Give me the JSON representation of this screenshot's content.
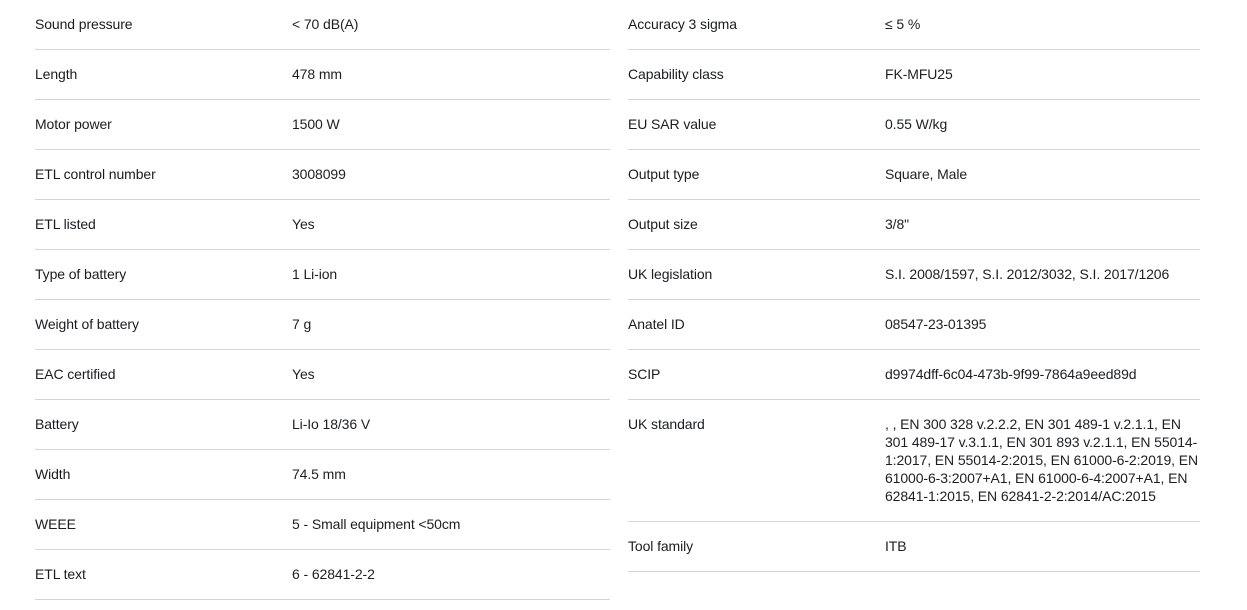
{
  "page": {
    "background_color": "#ffffff",
    "text_color": "#1d1f22",
    "divider_color": "#d5d5d5",
    "description": "Product technical data specification tables, two columns"
  },
  "left_table": {
    "rows": [
      {
        "label": "Sound pressure",
        "value": "< 70 dB(A)"
      },
      {
        "label": "Length",
        "value": "478 mm"
      },
      {
        "label": "Motor power",
        "value": "1500 W"
      },
      {
        "label": "ETL control number",
        "value": "3008099"
      },
      {
        "label": "ETL listed",
        "value": "Yes"
      },
      {
        "label": "Type of battery",
        "value": "1 Li-ion"
      },
      {
        "label": "Weight of battery",
        "value": "7 g"
      },
      {
        "label": "EAC certified",
        "value": "Yes"
      },
      {
        "label": "Battery",
        "value": "Li-Io 18/36 V"
      },
      {
        "label": "Width",
        "value": "74.5 mm"
      },
      {
        "label": "WEEE",
        "value": "5 - Small equipment <50cm"
      },
      {
        "label": "ETL text",
        "value": "6 - 62841-2-2"
      }
    ]
  },
  "right_table": {
    "rows": [
      {
        "label": "Accuracy 3 sigma",
        "value": "≤ 5 %"
      },
      {
        "label": "Capability class",
        "value": "FK-MFU25"
      },
      {
        "label": "EU SAR value",
        "value": "0.55 W/kg"
      },
      {
        "label": "Output type",
        "value": "Square, Male"
      },
      {
        "label": "Output size",
        "value": "3/8\""
      },
      {
        "label": "UK legislation",
        "value": "S.I. 2008/1597, S.I. 2012/3032, S.I. 2017/1206"
      },
      {
        "label": "Anatel ID",
        "value": "08547-23-01395"
      },
      {
        "label": "SCIP",
        "value": "d9974dff-6c04-473b-9f99-7864a9eed89d"
      },
      {
        "label": "UK standard",
        "value": ", , EN 300 328 v.2.2.2, EN 301 489-1 v.2.1.1, EN 301 489-17 v.3.1.1, EN 301 893 v.2.1.1, EN 55014-1:2017, EN 55014-2:2015, EN 61000-6-2:2019, EN 61000-6-3:2007+A1, EN 61000-6-4:2007+A1, EN 62841-1:2015, EN 62841-2-2:2014/AC:2015"
      },
      {
        "label": "Tool family",
        "value": "ITB"
      }
    ]
  }
}
